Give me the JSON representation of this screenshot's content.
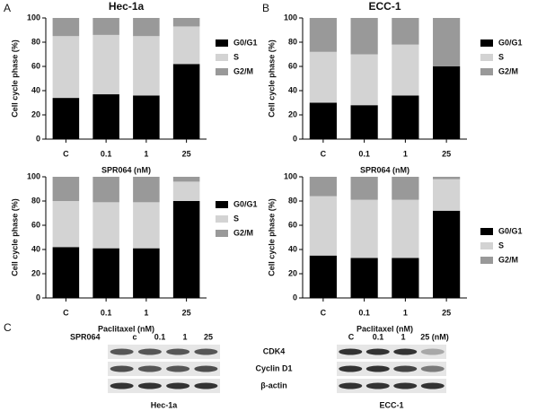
{
  "panel_labels": [
    "A",
    "B",
    "C"
  ],
  "chart_data": [
    {
      "type": "stacked_bar",
      "title": "Hec-1a",
      "x_label": "SPR064 (nM)",
      "y_label": "Cell cycle phase (%)",
      "categories": [
        "C",
        "0.1",
        "1",
        "25"
      ],
      "ylim": [
        0,
        100
      ],
      "yticks": [
        0,
        20,
        40,
        60,
        80,
        100
      ],
      "legend": "right",
      "series": [
        {
          "name": "G0/G1",
          "color": "#000000",
          "values": [
            34,
            37,
            36,
            62
          ]
        },
        {
          "name": "S",
          "color": "#d3d3d3",
          "values": [
            51,
            49,
            49,
            31
          ]
        },
        {
          "name": "G2/M",
          "color": "#999999",
          "values": [
            15,
            14,
            15,
            7
          ]
        }
      ]
    },
    {
      "type": "stacked_bar",
      "title": "ECC-1",
      "x_label": "SPR064 (nM)",
      "y_label": "Cell cycle phase (%)",
      "categories": [
        "C",
        "0.1",
        "1",
        "25"
      ],
      "ylim": [
        0,
        100
      ],
      "yticks": [
        0,
        20,
        40,
        60,
        80,
        100
      ],
      "legend": "right",
      "series": [
        {
          "name": "G0/G1",
          "color": "#000000",
          "values": [
            30,
            28,
            36,
            60
          ]
        },
        {
          "name": "S",
          "color": "#d3d3d3",
          "values": [
            42,
            42,
            42,
            0
          ]
        },
        {
          "name": "G2/M",
          "color": "#999999",
          "values": [
            28,
            30,
            22,
            40
          ]
        }
      ]
    },
    {
      "type": "stacked_bar",
      "x_label": "Paclitaxel (nM)",
      "y_label": "Cell cycle phase (%)",
      "categories": [
        "C",
        "0.1",
        "1",
        "25"
      ],
      "ylim": [
        0,
        100
      ],
      "yticks": [
        0,
        20,
        40,
        60,
        80,
        100
      ],
      "legend": "right",
      "series": [
        {
          "name": "G0/G1",
          "color": "#000000",
          "values": [
            42,
            41,
            41,
            80
          ]
        },
        {
          "name": "S",
          "color": "#d3d3d3",
          "values": [
            38,
            38,
            38,
            16
          ]
        },
        {
          "name": "G2/M",
          "color": "#999999",
          "values": [
            20,
            21,
            21,
            4
          ]
        }
      ]
    },
    {
      "type": "stacked_bar",
      "x_label": "Paclitaxel (nM)",
      "y_label": "Cell cycle phase (%)",
      "categories": [
        "C",
        "0.1",
        "1",
        "25"
      ],
      "ylim": [
        0,
        100
      ],
      "yticks": [
        0,
        20,
        40,
        60,
        80,
        100
      ],
      "legend": "right",
      "series": [
        {
          "name": "G0/G1",
          "color": "#000000",
          "values": [
            35,
            33,
            33,
            72
          ]
        },
        {
          "name": "S",
          "color": "#d3d3d3",
          "values": [
            49,
            48,
            48,
            26
          ]
        },
        {
          "name": "G2/M",
          "color": "#999999",
          "values": [
            16,
            19,
            19,
            2
          ]
        }
      ]
    }
  ],
  "blot": {
    "left": {
      "treatment": "SPR064",
      "lanes": [
        "c",
        "0.1",
        "1",
        "25"
      ],
      "cell_line": "Hec-1a"
    },
    "right": {
      "lanes": [
        "C",
        "0.1",
        "1",
        "25 (nM)"
      ],
      "cell_line": "ECC-1"
    },
    "proteins": [
      "CDK4",
      "Cyclin D1",
      "β-actin"
    ]
  }
}
